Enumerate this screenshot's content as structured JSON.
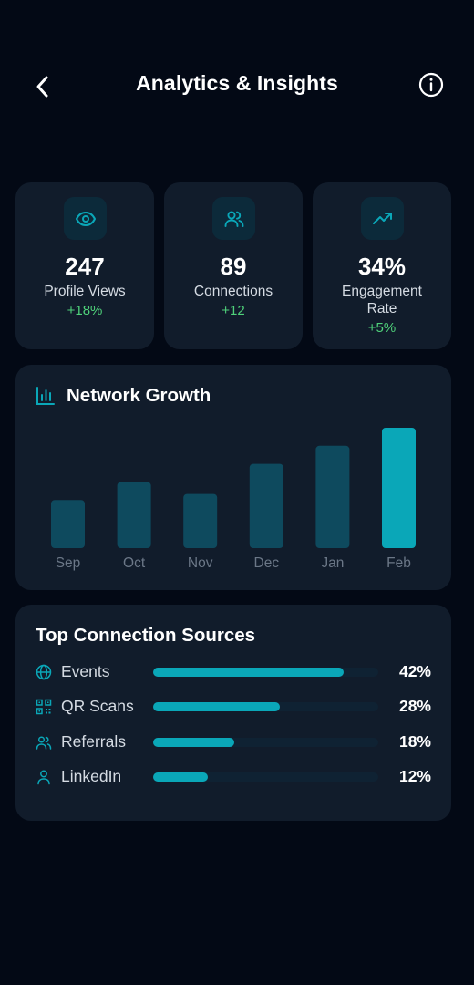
{
  "header": {
    "title": "Analytics & Insights",
    "back_icon": "chevron-left-icon",
    "info_icon": "info-icon"
  },
  "stats": [
    {
      "icon": "eye-icon",
      "value": "247",
      "label": "Profile Views",
      "delta": "+18%"
    },
    {
      "icon": "users-icon",
      "value": "89",
      "label": "Connections",
      "delta": "+12"
    },
    {
      "icon": "trending-up-icon",
      "value": "34%",
      "label": "Engagement Rate",
      "delta": "+5%"
    }
  ],
  "growth": {
    "title": "Network Growth",
    "icon": "bar-chart-icon"
  },
  "chart_data": {
    "type": "bar",
    "title": "Network Growth",
    "categories": [
      "Sep",
      "Oct",
      "Nov",
      "Dec",
      "Jan",
      "Feb"
    ],
    "values": [
      40,
      55,
      45,
      70,
      85,
      100
    ],
    "highlight_index": 5,
    "colors": {
      "bar": "#0e4a5e",
      "highlight": "#0aa7b8"
    }
  },
  "sources": {
    "title": "Top Connection Sources",
    "items": [
      {
        "icon": "globe-icon",
        "label": "Events",
        "percent": 42,
        "percent_label": "42%"
      },
      {
        "icon": "qr-code-icon",
        "label": "QR Scans",
        "percent": 28,
        "percent_label": "28%"
      },
      {
        "icon": "users-icon",
        "label": "Referrals",
        "percent": 18,
        "percent_label": "18%"
      },
      {
        "icon": "user-icon",
        "label": "LinkedIn",
        "percent": 12,
        "percent_label": "12%"
      }
    ]
  },
  "colors": {
    "accent": "#0aa7b8",
    "positive": "#4fd17a",
    "card": "#111c2b",
    "background": "#030915"
  }
}
